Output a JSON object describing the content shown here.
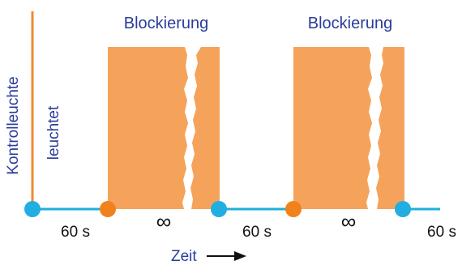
{
  "colors": {
    "orange": "#f5a35a",
    "orange_line": "#f08a30",
    "orange_dot": "#f0821e",
    "cyan_line": "#1fb0d8",
    "cyan_dot": "#22aee0",
    "blue_text": "#2a3d9a",
    "dark_text": "#111111"
  },
  "labels": {
    "y_axis_label": "Kontrolleuchte",
    "lamp_state": "leuchtet",
    "block_1_title": "Blockierung",
    "block_2_title": "Blockierung",
    "interval_1": "60 s",
    "interval_2": "60 s",
    "interval_3": "60 s",
    "infinity_1": "∞",
    "infinity_2": "∞",
    "time_axis": "Zeit"
  }
}
